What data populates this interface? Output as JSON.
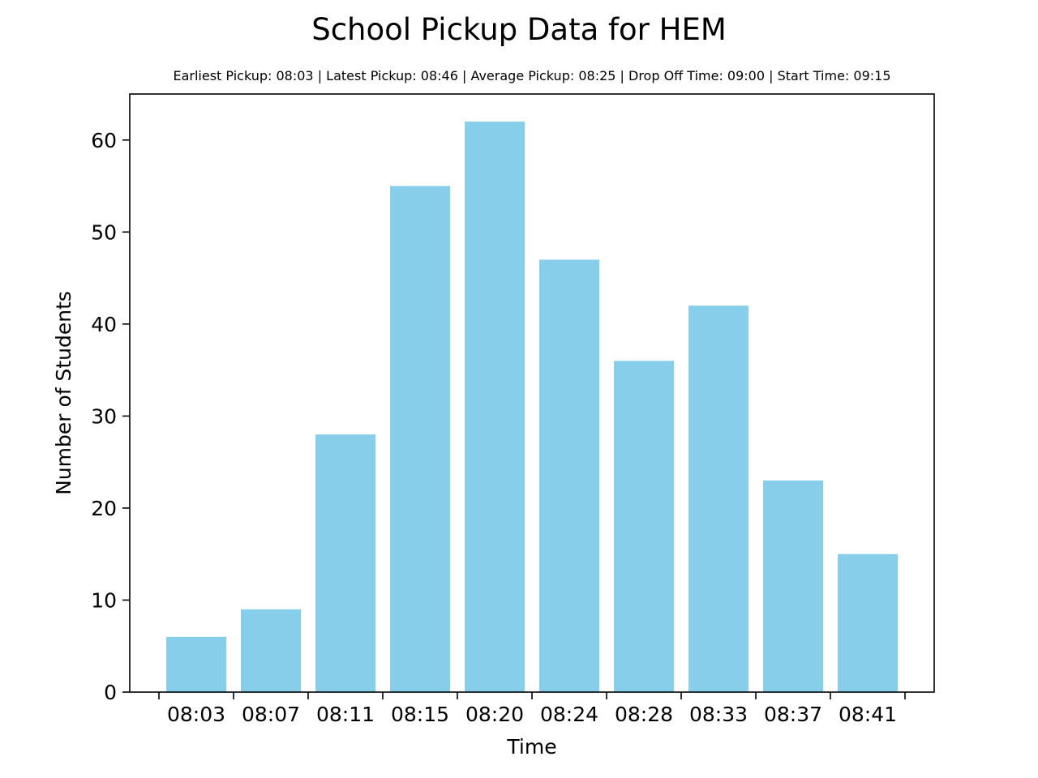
{
  "chart_data": {
    "type": "bar",
    "title": "School Pickup Data for HEM",
    "subtitle": "Earliest Pickup: 08:03 | Latest Pickup: 08:46 | Average Pickup: 08:25 | Drop Off Time: 09:00 | Start Time: 09:15",
    "xlabel": "Time",
    "ylabel": "Number of Students",
    "categories": [
      "08:03",
      "08:07",
      "08:11",
      "08:15",
      "08:20",
      "08:24",
      "08:28",
      "08:33",
      "08:37",
      "08:41"
    ],
    "values": [
      6,
      9,
      28,
      55,
      62,
      47,
      36,
      42,
      23,
      15
    ],
    "ylim": [
      0,
      65
    ],
    "yticks": [
      0,
      10,
      20,
      30,
      40,
      50,
      60
    ],
    "bar_color": "#87ceeb",
    "grid": false,
    "legend": "none"
  }
}
